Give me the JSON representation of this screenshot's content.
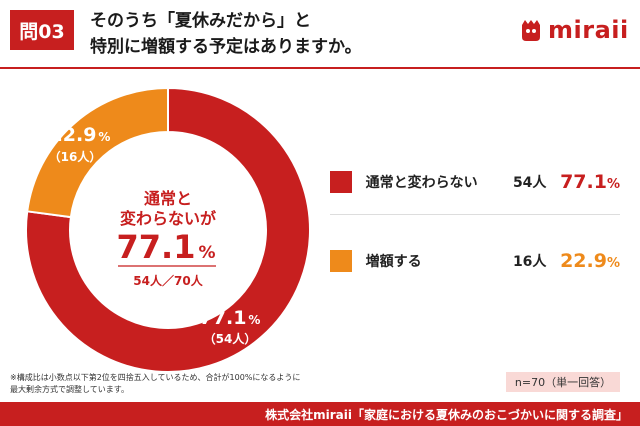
{
  "header": {
    "badge": "問03",
    "title_line1": "そのうち「夏休みだから」と",
    "title_line2": "特別に増額する予定はありますか。",
    "logo_text": "miraii",
    "brand_color": "#c71f1f"
  },
  "chart_data": {
    "type": "pie",
    "style": "donut",
    "categories": [
      "通常と変わらない",
      "増額する"
    ],
    "values": [
      77.1,
      22.9
    ],
    "counts": [
      "54人",
      "16人"
    ],
    "colors": [
      "#c71f1f",
      "#ee8a1b"
    ],
    "slice_labels": [
      {
        "pct": "77.1",
        "unit": "%",
        "count": "（54人）"
      },
      {
        "pct": "22.9",
        "unit": "%",
        "count": "（16人）"
      }
    ],
    "center": {
      "line1": "通常と",
      "line2": "変わらないが",
      "pct": "77.1",
      "unit": "%",
      "sub": "54人／70人"
    }
  },
  "legend": [
    {
      "label": "通常と変わらない",
      "count": "54人",
      "pct": "77.1",
      "unit": "%",
      "color": "#c71f1f"
    },
    {
      "label": "増額する",
      "count": "16人",
      "pct": "22.9",
      "unit": "%",
      "color": "#ee8a1b"
    }
  ],
  "footnote": {
    "line1": "※構成比は小数点以下第2位を四捨五入しているため、合計が100%になるように",
    "line2": "最大剰余方式で調整しています。"
  },
  "sample": "n=70（単一回答）",
  "footer": "株式会社miraii「家庭における夏休みのおこづかいに関する調査」"
}
